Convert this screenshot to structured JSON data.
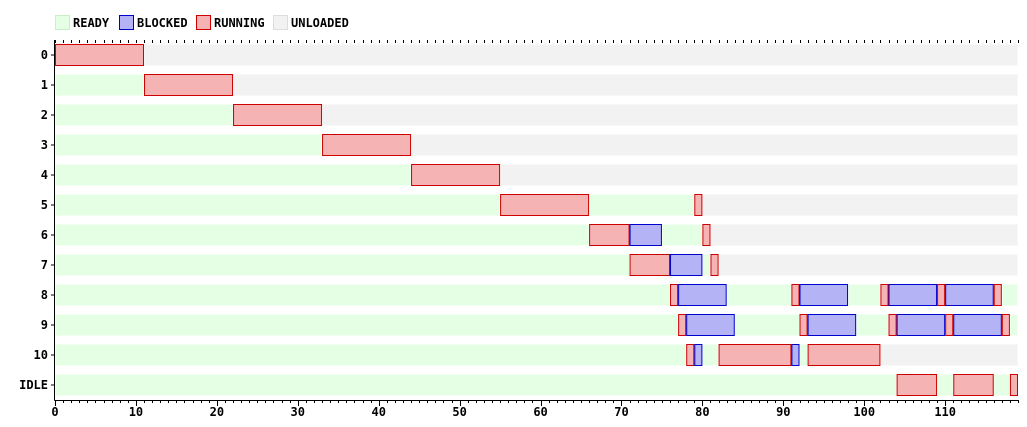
{
  "chart_data": {
    "type": "gantt",
    "title": "",
    "xlabel": "",
    "ylabel": "",
    "xlim": [
      0,
      119
    ],
    "x_ticks": [
      "0",
      "10",
      "20",
      "30",
      "40",
      "50",
      "60",
      "70",
      "80",
      "90",
      "100",
      "110"
    ],
    "states": [
      {
        "name": "READY",
        "fill": "#e5ffe5",
        "stroke": "#c8f0c8"
      },
      {
        "name": "BLOCKED",
        "fill": "#b3b3f5",
        "stroke": "#0000cc"
      },
      {
        "name": "RUNNING",
        "fill": "#f5b3b3",
        "stroke": "#cc0000"
      },
      {
        "name": "UNLOADED",
        "fill": "#f2f2f2",
        "stroke": "#dddddd"
      }
    ],
    "rows": [
      {
        "label": "0",
        "segments": [
          {
            "state": "RUNNING",
            "start": 0,
            "end": 11
          },
          {
            "state": "UNLOADED",
            "start": 11,
            "end": 119
          }
        ]
      },
      {
        "label": "1",
        "segments": [
          {
            "state": "READY",
            "start": 0,
            "end": 11
          },
          {
            "state": "RUNNING",
            "start": 11,
            "end": 22
          },
          {
            "state": "UNLOADED",
            "start": 22,
            "end": 119
          }
        ]
      },
      {
        "label": "2",
        "segments": [
          {
            "state": "READY",
            "start": 0,
            "end": 22
          },
          {
            "state": "RUNNING",
            "start": 22,
            "end": 33
          },
          {
            "state": "UNLOADED",
            "start": 33,
            "end": 119
          }
        ]
      },
      {
        "label": "3",
        "segments": [
          {
            "state": "READY",
            "start": 0,
            "end": 33
          },
          {
            "state": "RUNNING",
            "start": 33,
            "end": 44
          },
          {
            "state": "UNLOADED",
            "start": 44,
            "end": 119
          }
        ]
      },
      {
        "label": "4",
        "segments": [
          {
            "state": "READY",
            "start": 0,
            "end": 44
          },
          {
            "state": "RUNNING",
            "start": 44,
            "end": 55
          },
          {
            "state": "UNLOADED",
            "start": 55,
            "end": 119
          }
        ]
      },
      {
        "label": "5",
        "segments": [
          {
            "state": "READY",
            "start": 0,
            "end": 55
          },
          {
            "state": "RUNNING",
            "start": 55,
            "end": 66
          },
          {
            "state": "READY",
            "start": 66,
            "end": 79
          },
          {
            "state": "RUNNING",
            "start": 79,
            "end": 80
          },
          {
            "state": "UNLOADED",
            "start": 80,
            "end": 119
          }
        ]
      },
      {
        "label": "6",
        "segments": [
          {
            "state": "READY",
            "start": 0,
            "end": 66
          },
          {
            "state": "RUNNING",
            "start": 66,
            "end": 71
          },
          {
            "state": "BLOCKED",
            "start": 71,
            "end": 75
          },
          {
            "state": "READY",
            "start": 75,
            "end": 80
          },
          {
            "state": "RUNNING",
            "start": 80,
            "end": 81
          },
          {
            "state": "UNLOADED",
            "start": 81,
            "end": 119
          }
        ]
      },
      {
        "label": "7",
        "segments": [
          {
            "state": "READY",
            "start": 0,
            "end": 71
          },
          {
            "state": "RUNNING",
            "start": 71,
            "end": 76
          },
          {
            "state": "BLOCKED",
            "start": 76,
            "end": 80
          },
          {
            "state": "READY",
            "start": 80,
            "end": 81
          },
          {
            "state": "RUNNING",
            "start": 81,
            "end": 82
          },
          {
            "state": "UNLOADED",
            "start": 82,
            "end": 119
          }
        ]
      },
      {
        "label": "8",
        "segments": [
          {
            "state": "READY",
            "start": 0,
            "end": 76
          },
          {
            "state": "RUNNING",
            "start": 76,
            "end": 77
          },
          {
            "state": "BLOCKED",
            "start": 77,
            "end": 83
          },
          {
            "state": "READY",
            "start": 83,
            "end": 91
          },
          {
            "state": "RUNNING",
            "start": 91,
            "end": 92
          },
          {
            "state": "BLOCKED",
            "start": 92,
            "end": 98
          },
          {
            "state": "READY",
            "start": 98,
            "end": 102
          },
          {
            "state": "RUNNING",
            "start": 102,
            "end": 103
          },
          {
            "state": "BLOCKED",
            "start": 103,
            "end": 109
          },
          {
            "state": "RUNNING",
            "start": 109,
            "end": 110
          },
          {
            "state": "BLOCKED",
            "start": 110,
            "end": 116
          },
          {
            "state": "RUNNING",
            "start": 116,
            "end": 117
          },
          {
            "state": "READY",
            "start": 117,
            "end": 119
          }
        ]
      },
      {
        "label": "9",
        "segments": [
          {
            "state": "READY",
            "start": 0,
            "end": 77
          },
          {
            "state": "RUNNING",
            "start": 77,
            "end": 78
          },
          {
            "state": "BLOCKED",
            "start": 78,
            "end": 84
          },
          {
            "state": "READY",
            "start": 84,
            "end": 92
          },
          {
            "state": "RUNNING",
            "start": 92,
            "end": 93
          },
          {
            "state": "BLOCKED",
            "start": 93,
            "end": 99
          },
          {
            "state": "READY",
            "start": 99,
            "end": 103
          },
          {
            "state": "RUNNING",
            "start": 103,
            "end": 104
          },
          {
            "state": "BLOCKED",
            "start": 104,
            "end": 110
          },
          {
            "state": "RUNNING",
            "start": 110,
            "end": 111
          },
          {
            "state": "BLOCKED",
            "start": 111,
            "end": 117
          },
          {
            "state": "RUNNING",
            "start": 117,
            "end": 118
          },
          {
            "state": "READY",
            "start": 118,
            "end": 119
          }
        ]
      },
      {
        "label": "10",
        "segments": [
          {
            "state": "READY",
            "start": 0,
            "end": 78
          },
          {
            "state": "RUNNING",
            "start": 78,
            "end": 79
          },
          {
            "state": "BLOCKED",
            "start": 79,
            "end": 80
          },
          {
            "state": "READY",
            "start": 80,
            "end": 82
          },
          {
            "state": "RUNNING",
            "start": 82,
            "end": 91
          },
          {
            "state": "BLOCKED",
            "start": 91,
            "end": 92
          },
          {
            "state": "READY",
            "start": 92,
            "end": 93
          },
          {
            "state": "RUNNING",
            "start": 93,
            "end": 102
          },
          {
            "state": "UNLOADED",
            "start": 102,
            "end": 119
          }
        ]
      },
      {
        "label": "IDLE",
        "segments": [
          {
            "state": "READY",
            "start": 0,
            "end": 104
          },
          {
            "state": "RUNNING",
            "start": 104,
            "end": 109
          },
          {
            "state": "READY",
            "start": 109,
            "end": 111
          },
          {
            "state": "RUNNING",
            "start": 111,
            "end": 116
          },
          {
            "state": "READY",
            "start": 116,
            "end": 118
          },
          {
            "state": "RUNNING",
            "start": 118,
            "end": 119
          }
        ]
      }
    ]
  }
}
